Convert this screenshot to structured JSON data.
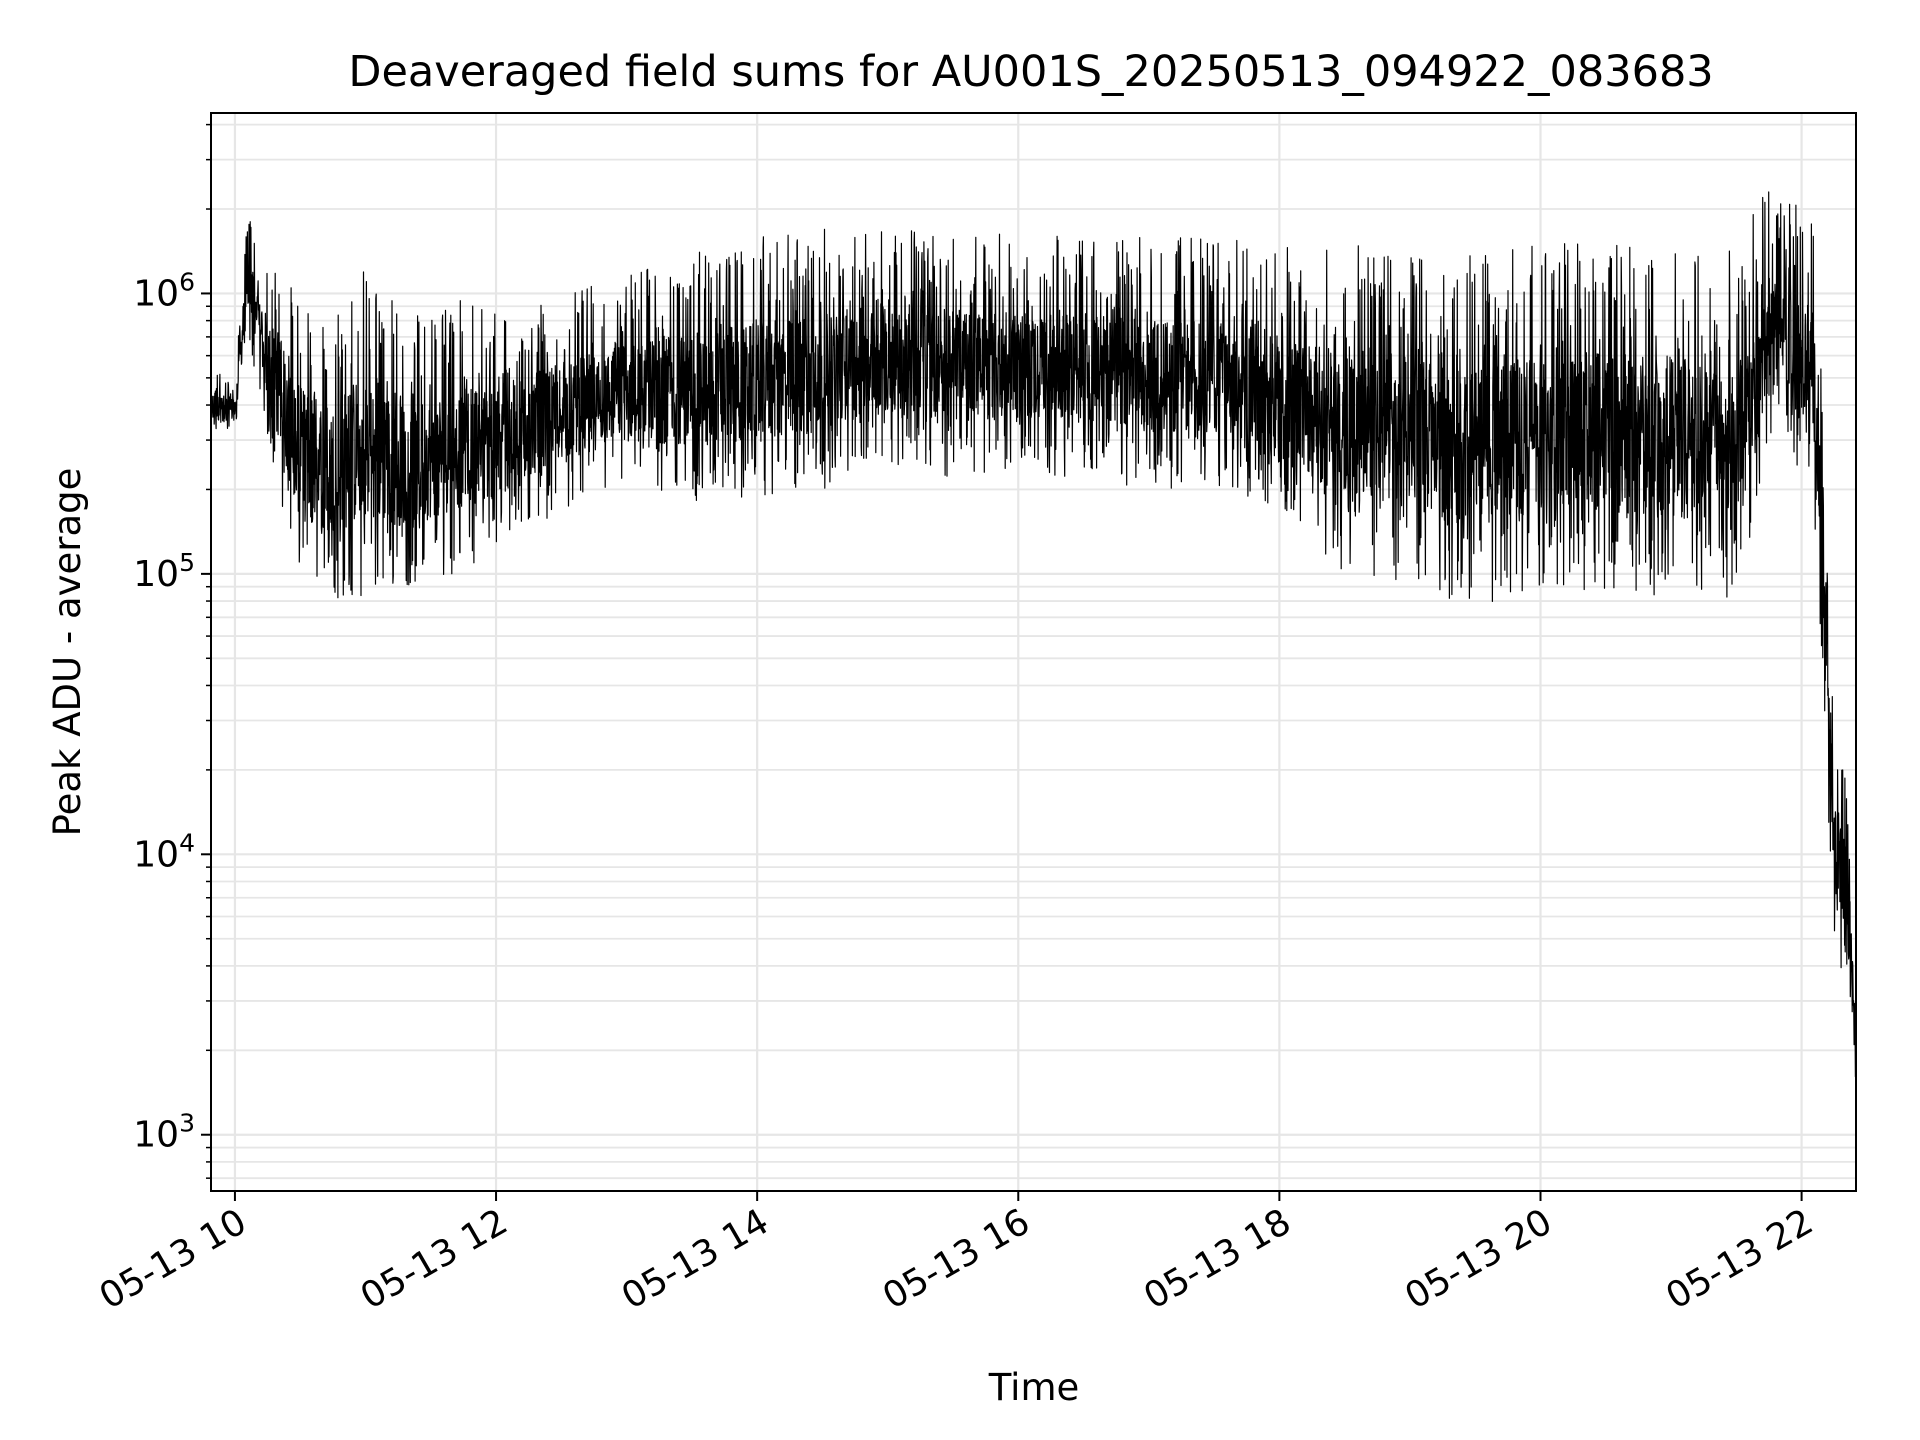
{
  "chart_data": {
    "type": "line",
    "title": "Deaveraged field sums for AU001S_20250513_094922_083683",
    "xlabel": "Time",
    "ylabel": "Peak ADU - average",
    "yscale": "log",
    "ylim": [
      630,
      4400000
    ],
    "xlim": [
      "2025-05-13 09:49",
      "2025-05-13 22:25"
    ],
    "x_ticks": [
      {
        "t": "2025-05-13 10:00",
        "label": "05-13 10"
      },
      {
        "t": "2025-05-13 12:00",
        "label": "05-13 12"
      },
      {
        "t": "2025-05-13 14:00",
        "label": "05-13 14"
      },
      {
        "t": "2025-05-13 16:00",
        "label": "05-13 16"
      },
      {
        "t": "2025-05-13 18:00",
        "label": "05-13 18"
      },
      {
        "t": "2025-05-13 20:00",
        "label": "05-13 20"
      },
      {
        "t": "2025-05-13 22:00",
        "label": "05-13 22"
      }
    ],
    "y_ticks": [
      {
        "value": 1000,
        "base": "10",
        "exp": "3"
      },
      {
        "value": 10000,
        "base": "10",
        "exp": "4"
      },
      {
        "value": 100000,
        "base": "10",
        "exp": "5"
      },
      {
        "value": 1000000,
        "base": "10",
        "exp": "6"
      }
    ],
    "grid": true,
    "line_color": "#000000",
    "series": [
      {
        "name": "",
        "envelope": [
          {
            "t": "2025-05-13 09:49",
            "low": 300000,
            "high": 550000
          },
          {
            "t": "2025-05-13 10:00",
            "low": 320000,
            "high": 480000
          },
          {
            "t": "2025-05-13 10:06",
            "low": 700000,
            "high": 2000000
          },
          {
            "t": "2025-05-13 10:15",
            "low": 300000,
            "high": 1300000
          },
          {
            "t": "2025-05-13 10:30",
            "low": 90000,
            "high": 1000000
          },
          {
            "t": "2025-05-13 10:45",
            "low": 80000,
            "high": 900000
          },
          {
            "t": "2025-05-13 11:00",
            "low": 80000,
            "high": 1400000
          },
          {
            "t": "2025-05-13 11:20",
            "low": 90000,
            "high": 800000
          },
          {
            "t": "2025-05-13 11:40",
            "low": 100000,
            "high": 1000000
          },
          {
            "t": "2025-05-13 12:00",
            "low": 120000,
            "high": 900000
          },
          {
            "t": "2025-05-13 12:30",
            "low": 170000,
            "high": 1000000
          },
          {
            "t": "2025-05-13 13:00",
            "low": 200000,
            "high": 1200000
          },
          {
            "t": "2025-05-13 13:30",
            "low": 180000,
            "high": 1400000
          },
          {
            "t": "2025-05-13 14:00",
            "low": 180000,
            "high": 1600000
          },
          {
            "t": "2025-05-13 14:30",
            "low": 200000,
            "high": 1700000
          },
          {
            "t": "2025-05-13 15:00",
            "low": 250000,
            "high": 1700000
          },
          {
            "t": "2025-05-13 15:30",
            "low": 220000,
            "high": 1700000
          },
          {
            "t": "2025-05-13 16:00",
            "low": 230000,
            "high": 1600000
          },
          {
            "t": "2025-05-13 16:30",
            "low": 220000,
            "high": 1600000
          },
          {
            "t": "2025-05-13 17:00",
            "low": 200000,
            "high": 1600000
          },
          {
            "t": "2025-05-13 17:30",
            "low": 200000,
            "high": 1600000
          },
          {
            "t": "2025-05-13 18:00",
            "low": 150000,
            "high": 1500000
          },
          {
            "t": "2025-05-13 18:30",
            "low": 100000,
            "high": 1500000
          },
          {
            "t": "2025-05-13 19:00",
            "low": 90000,
            "high": 1400000
          },
          {
            "t": "2025-05-13 19:30",
            "low": 75000,
            "high": 1400000
          },
          {
            "t": "2025-05-13 20:00",
            "low": 90000,
            "high": 1500000
          },
          {
            "t": "2025-05-13 20:30",
            "low": 85000,
            "high": 1600000
          },
          {
            "t": "2025-05-13 21:00",
            "low": 80000,
            "high": 1600000
          },
          {
            "t": "2025-05-13 21:30",
            "low": 80000,
            "high": 1500000
          },
          {
            "t": "2025-05-13 21:50",
            "low": 300000,
            "high": 3000000
          },
          {
            "t": "2025-05-13 22:05",
            "low": 200000,
            "high": 1800000
          },
          {
            "t": "2025-05-13 22:10",
            "low": 40000,
            "high": 400000
          },
          {
            "t": "2025-05-13 22:15",
            "low": 4000,
            "high": 24000
          },
          {
            "t": "2025-05-13 22:21",
            "low": 3500,
            "high": 20000
          },
          {
            "t": "2025-05-13 22:25",
            "low": 1200,
            "high": 3000
          }
        ]
      }
    ]
  }
}
